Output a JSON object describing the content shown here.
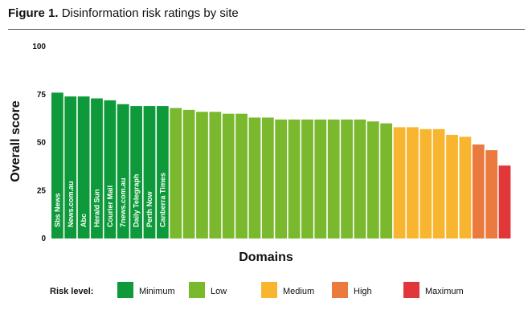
{
  "figure": {
    "label": "Figure 1.",
    "title": "Disinformation risk ratings by site"
  },
  "chart_data": {
    "type": "bar",
    "xlabel": "Domains",
    "ylabel": "Overall score",
    "ylim": [
      0,
      100
    ],
    "yticks": [
      0,
      25,
      50,
      75,
      100
    ],
    "grid": false,
    "legend_position": "bottom",
    "legend_title": "Risk level:",
    "risk_levels": [
      {
        "key": "minimum",
        "name": "Minimum",
        "color": "#0e9a3a"
      },
      {
        "key": "low",
        "name": "Low",
        "color": "#7ab82e"
      },
      {
        "key": "medium",
        "name": "Medium",
        "color": "#f8b530"
      },
      {
        "key": "high",
        "name": "High",
        "color": "#ea7a3e"
      },
      {
        "key": "maximum",
        "name": "Maximum",
        "color": "#e2373a"
      }
    ],
    "bars": [
      {
        "label": "Sbs News",
        "value": 76,
        "level": "minimum"
      },
      {
        "label": "News.com.au",
        "value": 74,
        "level": "minimum"
      },
      {
        "label": "Abc",
        "value": 74,
        "level": "minimum"
      },
      {
        "label": "Herald Sun",
        "value": 73,
        "level": "minimum"
      },
      {
        "label": "Courier Mail",
        "value": 72,
        "level": "minimum"
      },
      {
        "label": "7news.com.au",
        "value": 70,
        "level": "minimum"
      },
      {
        "label": "Daily Telegraph",
        "value": 69,
        "level": "minimum"
      },
      {
        "label": "Perth Now",
        "value": 69,
        "level": "minimum"
      },
      {
        "label": "Canberra Times",
        "value": 69,
        "level": "minimum"
      },
      {
        "label": "",
        "value": 68,
        "level": "low"
      },
      {
        "label": "",
        "value": 67,
        "level": "low"
      },
      {
        "label": "",
        "value": 66,
        "level": "low"
      },
      {
        "label": "",
        "value": 66,
        "level": "low"
      },
      {
        "label": "",
        "value": 65,
        "level": "low"
      },
      {
        "label": "",
        "value": 65,
        "level": "low"
      },
      {
        "label": "",
        "value": 63,
        "level": "low"
      },
      {
        "label": "",
        "value": 63,
        "level": "low"
      },
      {
        "label": "",
        "value": 62,
        "level": "low"
      },
      {
        "label": "",
        "value": 62,
        "level": "low"
      },
      {
        "label": "",
        "value": 62,
        "level": "low"
      },
      {
        "label": "",
        "value": 62,
        "level": "low"
      },
      {
        "label": "",
        "value": 62,
        "level": "low"
      },
      {
        "label": "",
        "value": 62,
        "level": "low"
      },
      {
        "label": "",
        "value": 62,
        "level": "low"
      },
      {
        "label": "",
        "value": 61,
        "level": "low"
      },
      {
        "label": "",
        "value": 60,
        "level": "low"
      },
      {
        "label": "",
        "value": 58,
        "level": "medium"
      },
      {
        "label": "",
        "value": 58,
        "level": "medium"
      },
      {
        "label": "",
        "value": 57,
        "level": "medium"
      },
      {
        "label": "",
        "value": 57,
        "level": "medium"
      },
      {
        "label": "",
        "value": 54,
        "level": "medium"
      },
      {
        "label": "",
        "value": 53,
        "level": "medium"
      },
      {
        "label": "",
        "value": 49,
        "level": "high"
      },
      {
        "label": "",
        "value": 46,
        "level": "high"
      },
      {
        "label": "",
        "value": 38,
        "level": "maximum"
      }
    ]
  }
}
